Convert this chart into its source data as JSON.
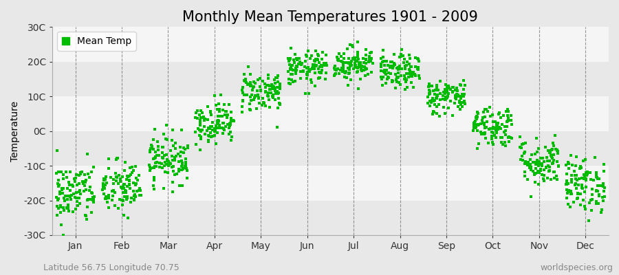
{
  "title": "Monthly Mean Temperatures 1901 - 2009",
  "ylabel": "Temperature",
  "subtitle_left": "Latitude 56.75 Longitude 70.75",
  "subtitle_right": "worldspecies.org",
  "legend_label": "Mean Temp",
  "dot_color": "#00bb00",
  "dot_size": 5,
  "ylim": [
    -30,
    30
  ],
  "ytick_labels": [
    "30C",
    "20C",
    "10C",
    "0C",
    "-10C",
    "-20C",
    "-30C"
  ],
  "ytick_values": [
    30,
    20,
    10,
    0,
    -10,
    -20,
    -30
  ],
  "months": [
    "Jan",
    "Feb",
    "Mar",
    "Apr",
    "May",
    "Jun",
    "Jul",
    "Aug",
    "Sep",
    "Oct",
    "Nov",
    "Dec"
  ],
  "month_means": [
    -18.0,
    -16.5,
    -8.0,
    2.5,
    11.5,
    18.0,
    19.5,
    17.0,
    10.0,
    1.5,
    -9.0,
    -15.5
  ],
  "month_stds": [
    4.5,
    4.0,
    3.5,
    3.0,
    3.0,
    2.5,
    2.5,
    2.5,
    2.5,
    3.0,
    3.5,
    4.0
  ],
  "n_years": 109,
  "fig_background_color": "#e8e8e8",
  "plot_background_color": "#ffffff",
  "band_color_light": "#f5f5f5",
  "band_color_dark": "#e8e8e8",
  "grid_color": "#555555",
  "title_fontsize": 15,
  "axis_fontsize": 10,
  "tick_fontsize": 10,
  "subtitle_fontsize": 9
}
